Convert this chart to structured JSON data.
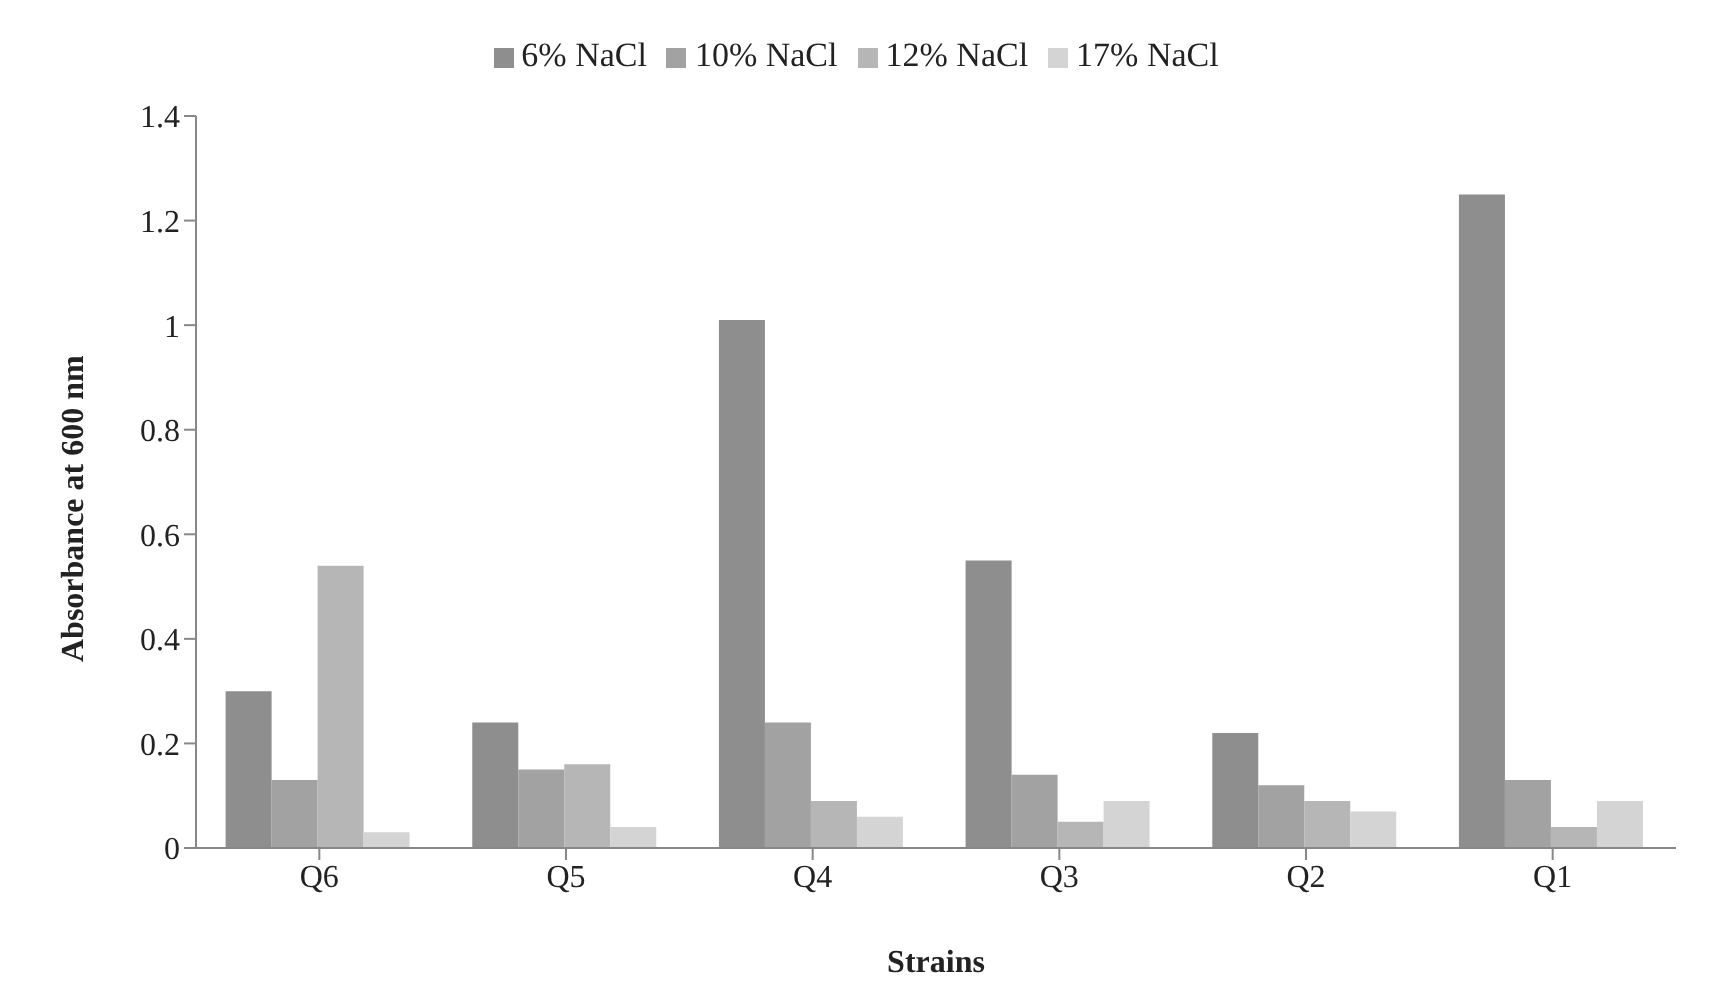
{
  "chart_data": {
    "type": "bar",
    "xlabel": "Strains",
    "ylabel": "Absorbance at 600 nm",
    "categories": [
      "Q6",
      "Q5",
      "Q4",
      "Q3",
      "Q2",
      "Q1"
    ],
    "series": [
      {
        "name": "6% NaCl",
        "color": "#8e8e8e",
        "values": [
          0.3,
          0.24,
          1.01,
          0.55,
          0.22,
          1.25
        ]
      },
      {
        "name": "10% NaCl",
        "color": "#a2a2a2",
        "values": [
          0.13,
          0.15,
          0.24,
          0.14,
          0.12,
          0.13
        ]
      },
      {
        "name": "12% NaCl",
        "color": "#b6b6b6",
        "values": [
          0.54,
          0.16,
          0.09,
          0.05,
          0.09,
          0.04
        ]
      },
      {
        "name": "17% NaCl",
        "color": "#d4d4d4",
        "values": [
          0.03,
          0.04,
          0.06,
          0.09,
          0.07,
          0.09
        ]
      }
    ],
    "ylim": [
      0,
      1.4
    ],
    "yticks": [
      0,
      {
        "value": 0.2,
        "label": "0.2"
      },
      {
        "value": 0.4,
        "label": "0.4"
      },
      {
        "value": 0.6,
        "label": "0.6"
      },
      {
        "value": 0.8,
        "label": "0.8"
      },
      1,
      {
        "value": 1.2,
        "label": "1.2"
      },
      {
        "value": 1.4,
        "label": "1.4"
      }
    ],
    "grid": false,
    "legend": "top"
  }
}
